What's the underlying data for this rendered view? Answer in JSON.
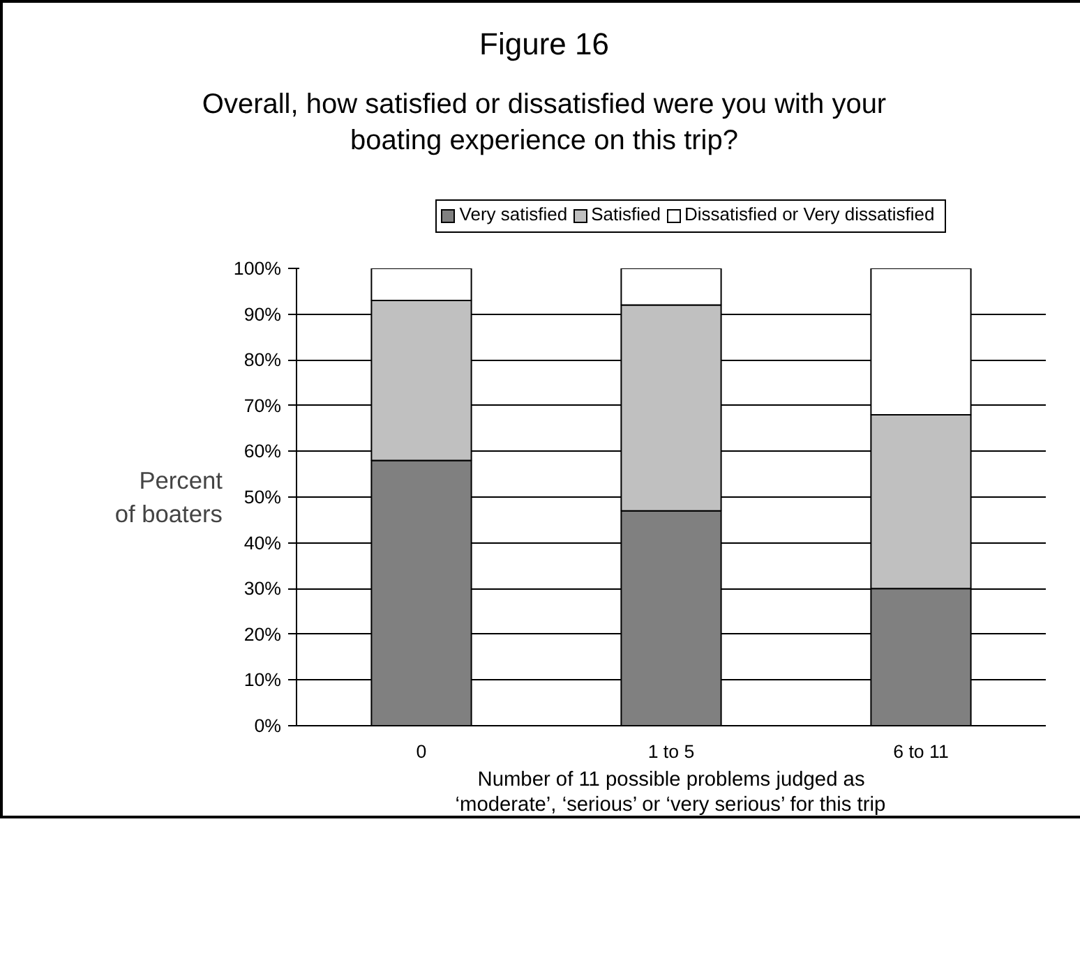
{
  "chart_data": {
    "type": "bar",
    "stacked": true,
    "title": "Figure 16",
    "subtitle": "Overall, how satisfied or dissatisfied were you with your\nboating experience on this trip?",
    "categories": [
      "0",
      "1 to 5",
      "6 to 11"
    ],
    "series": [
      {
        "name": "Very satisfied",
        "color": "#808080",
        "values": [
          58,
          47,
          30
        ]
      },
      {
        "name": "Satisfied",
        "color": "#c0c0c0",
        "values": [
          35,
          45,
          38
        ]
      },
      {
        "name": "Dissatisfied or Very dissatisfied",
        "color": "#ffffff",
        "values": [
          7,
          8,
          32
        ]
      }
    ],
    "ylim": [
      0,
      100
    ],
    "yticks": [
      {
        "value": 0,
        "label": "0%"
      },
      {
        "value": 10,
        "label": "10%"
      },
      {
        "value": 20,
        "label": "20%"
      },
      {
        "value": 30,
        "label": "30%"
      },
      {
        "value": 40,
        "label": "40%"
      },
      {
        "value": 50,
        "label": "50%"
      },
      {
        "value": 60,
        "label": "60%"
      },
      {
        "value": 70,
        "label": "70%"
      },
      {
        "value": 80,
        "label": "80%"
      },
      {
        "value": 90,
        "label": "90%"
      },
      {
        "value": 100,
        "label": "100%"
      }
    ],
    "ylabel": "Percent\nof boaters",
    "xlabel": "Number of 11 possible problems judged as\n‘moderate’, ‘serious’ or ‘very serious’ for this trip",
    "grid": "y",
    "legend": "top"
  }
}
